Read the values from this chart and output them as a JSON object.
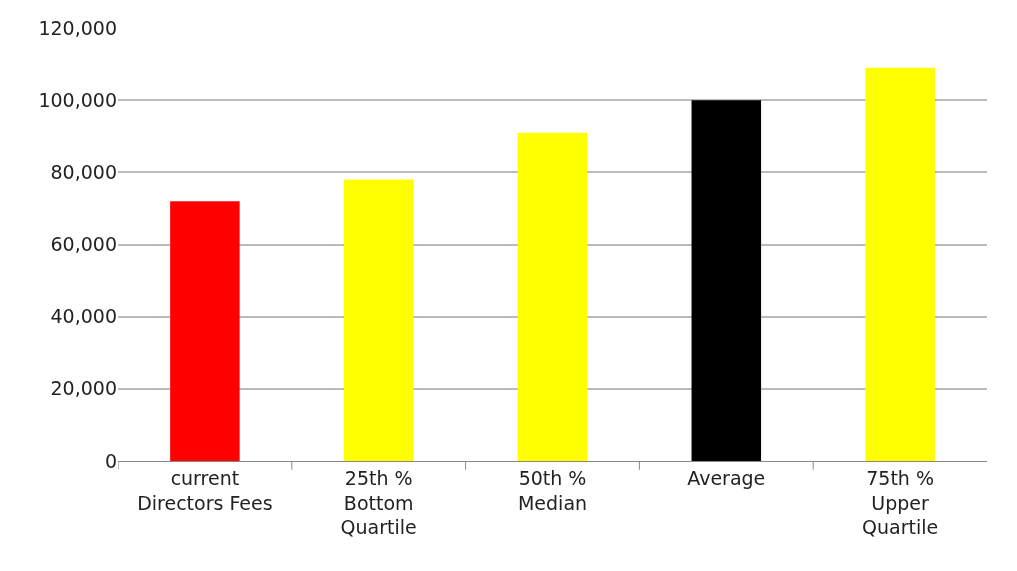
{
  "chart_data": {
    "type": "bar",
    "categories": [
      "current\nDirectors Fees",
      "25th %\nBottom\nQuartile",
      "50th %\nMedian",
      "Average",
      "75th %\nUpper\nQuartile"
    ],
    "values": [
      72000,
      78000,
      91000,
      100000,
      109000
    ],
    "colors": [
      "#ff0000",
      "#ffff00",
      "#ffff00",
      "#000000",
      "#ffff00"
    ],
    "ylim": [
      0,
      120000
    ],
    "yticks": [
      {
        "value": 0,
        "label": "0"
      },
      {
        "value": 20000,
        "label": "20,000"
      },
      {
        "value": 40000,
        "label": "40,000"
      },
      {
        "value": 60000,
        "label": "60,000"
      },
      {
        "value": 80000,
        "label": "80,000"
      },
      {
        "value": 100000,
        "label": "100,000"
      },
      {
        "value": 120000,
        "label": "120,000"
      }
    ],
    "grid": "y"
  }
}
